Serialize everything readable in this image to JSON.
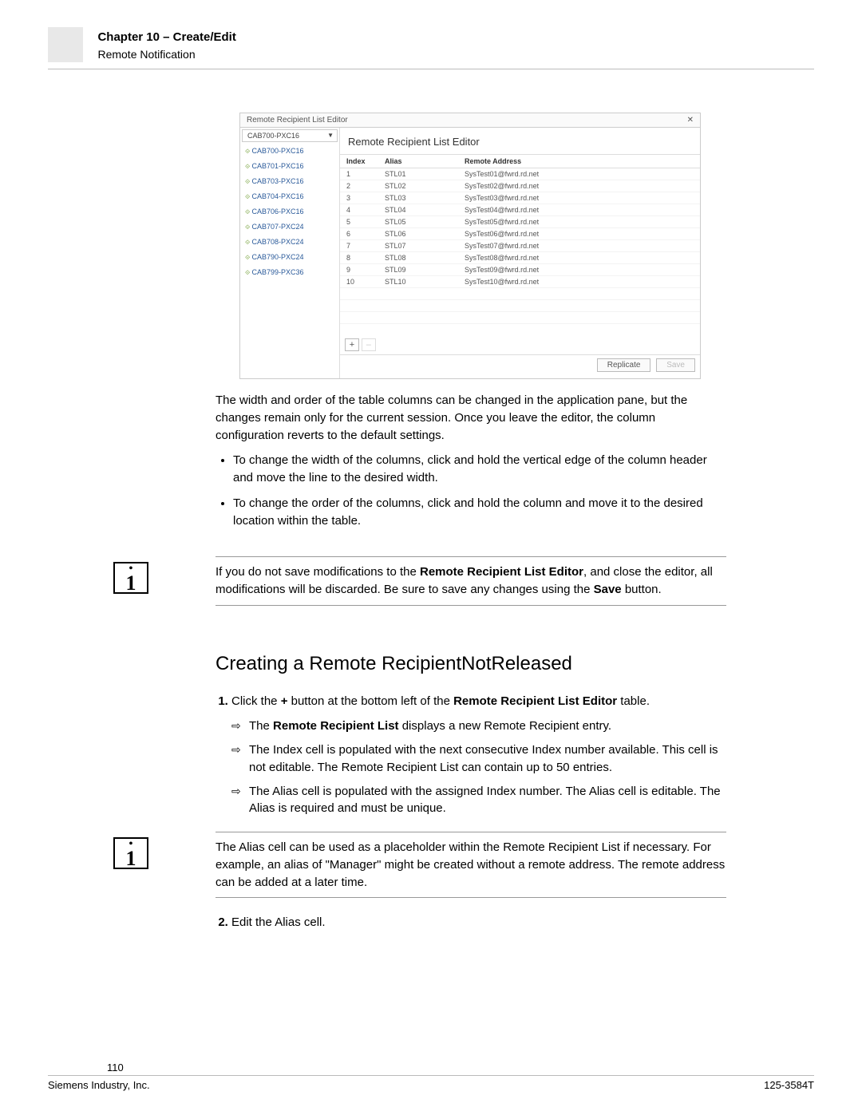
{
  "header": {
    "chapter": "Chapter 10 – Create/Edit",
    "subtitle": "Remote Notification"
  },
  "screenshot": {
    "tab_title": "Remote Recipient List Editor",
    "dropdown_selected": "CAB700-PXC16",
    "tree": [
      "CAB700-PXC16",
      "CAB701-PXC16",
      "CAB703-PXC16",
      "CAB704-PXC16",
      "CAB706-PXC16",
      "CAB707-PXC24",
      "CAB708-PXC24",
      "CAB790-PXC24",
      "CAB799-PXC36"
    ],
    "panel_title": "Remote Recipient List Editor",
    "columns": {
      "index": "Index",
      "alias": "Alias",
      "addr": "Remote Address"
    },
    "rows": [
      {
        "index": "1",
        "alias": "STL01",
        "addr": "SysTest01@fwrd.rd.net"
      },
      {
        "index": "2",
        "alias": "STL02",
        "addr": "SysTest02@fwrd.rd.net"
      },
      {
        "index": "3",
        "alias": "STL03",
        "addr": "SysTest03@fwrd.rd.net"
      },
      {
        "index": "4",
        "alias": "STL04",
        "addr": "SysTest04@fwrd.rd.net"
      },
      {
        "index": "5",
        "alias": "STL05",
        "addr": "SysTest05@fwrd.rd.net"
      },
      {
        "index": "6",
        "alias": "STL06",
        "addr": "SysTest06@fwrd.rd.net"
      },
      {
        "index": "7",
        "alias": "STL07",
        "addr": "SysTest07@fwrd.rd.net"
      },
      {
        "index": "8",
        "alias": "STL08",
        "addr": "SysTest08@fwrd.rd.net"
      },
      {
        "index": "9",
        "alias": "STL09",
        "addr": "SysTest09@fwrd.rd.net"
      },
      {
        "index": "10",
        "alias": "STL10",
        "addr": "SysTest10@fwrd.rd.net"
      }
    ],
    "add": "+",
    "remove": "–",
    "replicate": "Replicate",
    "save": "Save"
  },
  "body": {
    "p1": "The width and order of the table columns can be changed in the application pane, but the changes remain only for the current session. Once you leave the editor, the column configuration reverts to the default settings.",
    "b1": "To change the width of the columns, click and hold the vertical edge of the column header and move the line to the desired width.",
    "b2": "To change the order of the columns, click and hold the column and move it to the desired location within the table.",
    "note1_a": "If you do not save modifications to the ",
    "note1_b": "Remote Recipient List Editor",
    "note1_c": ", and close the editor, all modifications will be discarded. Be sure to save any changes using the ",
    "note1_d": "Save",
    "note1_e": " button.",
    "h2": "Creating a Remote RecipientNotReleased",
    "s1_a": "Click the ",
    "s1_b": "+",
    "s1_c": " button at the bottom left of the ",
    "s1_d": "Remote Recipient List Editor",
    "s1_e": " table.",
    "a1_a": "The ",
    "a1_b": "Remote Recipient List",
    "a1_c": " displays a new Remote Recipient entry.",
    "a2": "The Index cell is populated with the next consecutive Index number available. This cell is not editable. The Remote Recipient List can contain up to 50 entries.",
    "a3": "The Alias cell is populated with the assigned Index number. The Alias cell is editable. The Alias is required and must be unique.",
    "note2": "The Alias cell can be used as a placeholder within the Remote Recipient List if necessary. For example, an alias of \"Manager\" might be created without a remote address. The remote address can be added at a later time.",
    "s2": "Edit the Alias cell."
  },
  "footer": {
    "page": "110",
    "company": "Siemens Industry, Inc.",
    "doc": "125-3584T"
  }
}
